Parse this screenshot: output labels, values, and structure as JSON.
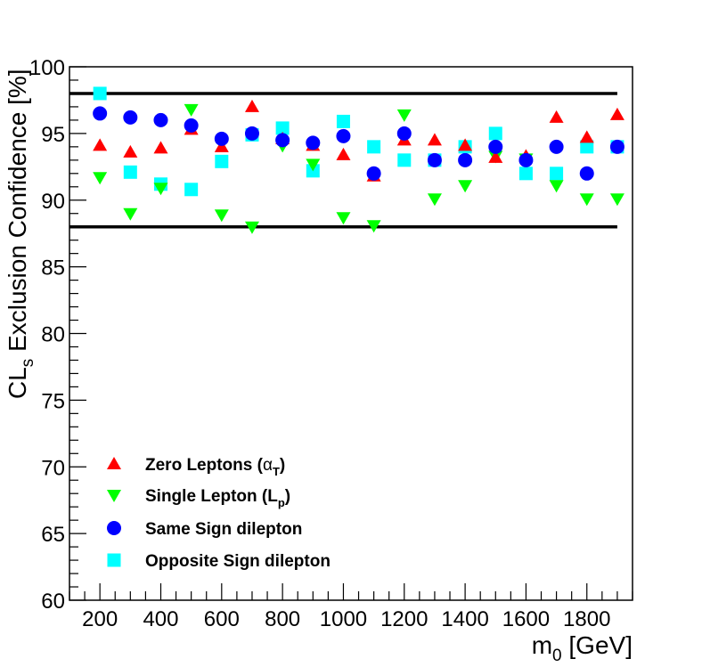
{
  "chart_data": {
    "type": "scatter",
    "title": "",
    "xlabel": {
      "main": "m",
      "sub": "0",
      "unit": " [GeV]"
    },
    "ylabel": {
      "main": "CL",
      "sub": "s",
      "rest": " Exclusion Confidence [%]"
    },
    "xlim": [
      100,
      1950
    ],
    "ylim": [
      60,
      100
    ],
    "xticks": [
      200,
      400,
      600,
      800,
      1000,
      1200,
      1400,
      1600,
      1800
    ],
    "yticks": [
      60,
      65,
      70,
      75,
      80,
      85,
      90,
      95,
      100
    ],
    "reference_lines": [
      {
        "name": "upper-reference-line",
        "y": 98,
        "x_from": 100,
        "x_to": 1900
      },
      {
        "name": "lower-reference-line",
        "y": 88,
        "x_from": 100,
        "x_to": 1900
      }
    ],
    "x": [
      200,
      300,
      400,
      500,
      600,
      700,
      800,
      900,
      1000,
      1100,
      1200,
      1300,
      1400,
      1500,
      1600,
      1700,
      1800,
      1900
    ],
    "series": [
      {
        "name": "Zero Leptons",
        "label_parts": [
          "Zero Leptons (",
          "α",
          "T",
          ")"
        ],
        "marker": "triangle-up",
        "color": "#ff0000",
        "values": [
          94.1,
          93.6,
          93.9,
          95.3,
          94.0,
          97.0,
          94.6,
          94.1,
          93.4,
          91.8,
          94.5,
          94.5,
          94.1,
          93.2,
          93.3,
          96.2,
          94.7,
          96.4
        ]
      },
      {
        "name": "Single Lepton",
        "label_parts": [
          "Single Lepton (L",
          "p",
          ")"
        ],
        "marker": "triangle-down",
        "color": "#00ff00",
        "values": [
          91.7,
          89.0,
          90.9,
          96.8,
          88.9,
          88.0,
          94.1,
          92.7,
          88.7,
          88.1,
          96.4,
          90.1,
          91.1,
          93.3,
          93.1,
          91.1,
          90.1,
          90.1
        ]
      },
      {
        "name": "Same Sign dilepton",
        "label_parts": [
          "Same Sign dilepton"
        ],
        "marker": "circle",
        "color": "#0000ff",
        "values": [
          96.5,
          96.2,
          96.0,
          95.6,
          94.6,
          95.0,
          94.5,
          94.3,
          94.8,
          92.0,
          95.0,
          93.0,
          93.0,
          94.0,
          93.0,
          94.0,
          92.0,
          94.0
        ]
      },
      {
        "name": "Opposite Sign dilepton",
        "label_parts": [
          "Opposite Sign dilepton"
        ],
        "marker": "square",
        "color": "#00ffff",
        "values": [
          98.0,
          92.1,
          91.2,
          90.8,
          92.9,
          94.9,
          95.4,
          92.2,
          95.9,
          94.0,
          93.0,
          93.0,
          94.0,
          95.0,
          92.0,
          92.0,
          94.0,
          94.0
        ]
      }
    ],
    "legend": "bottom-left"
  }
}
